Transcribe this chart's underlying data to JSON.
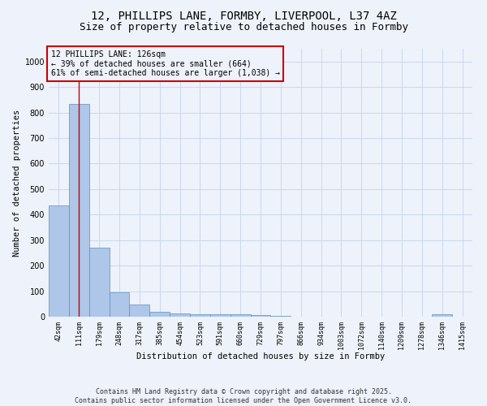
{
  "title_line1": "12, PHILLIPS LANE, FORMBY, LIVERPOOL, L37 4AZ",
  "title_line2": "Size of property relative to detached houses in Formby",
  "xlabel": "Distribution of detached houses by size in Formby",
  "ylabel": "Number of detached properties",
  "bar_color": "#aec6e8",
  "bar_edge_color": "#5a8fc2",
  "background_color": "#eef2fa",
  "grid_color": "#c8d8f0",
  "annotation_box_color": "#cc0000",
  "vline_color": "#cc0000",
  "vline_x": 1.0,
  "categories": [
    "42sqm",
    "111sqm",
    "179sqm",
    "248sqm",
    "317sqm",
    "385sqm",
    "454sqm",
    "523sqm",
    "591sqm",
    "660sqm",
    "729sqm",
    "797sqm",
    "866sqm",
    "934sqm",
    "1003sqm",
    "1072sqm",
    "1140sqm",
    "1209sqm",
    "1278sqm",
    "1346sqm",
    "1415sqm"
  ],
  "values": [
    435,
    835,
    270,
    95,
    47,
    20,
    13,
    10,
    8,
    10,
    5,
    2,
    1,
    1,
    1,
    0,
    0,
    0,
    0,
    10,
    0
  ],
  "ylim": [
    0,
    1050
  ],
  "yticks": [
    0,
    100,
    200,
    300,
    400,
    500,
    600,
    700,
    800,
    900,
    1000
  ],
  "annotation_text": "12 PHILLIPS LANE: 126sqm\n← 39% of detached houses are smaller (664)\n61% of semi-detached houses are larger (1,038) →",
  "annotation_fontsize": 7,
  "title_fontsize1": 10,
  "title_fontsize2": 9,
  "tick_fontsize": 6,
  "ylabel_fontsize": 7.5,
  "xlabel_fontsize": 7.5,
  "footer_text": "Contains HM Land Registry data © Crown copyright and database right 2025.\nContains public sector information licensed under the Open Government Licence v3.0.",
  "footer_fontsize": 6
}
